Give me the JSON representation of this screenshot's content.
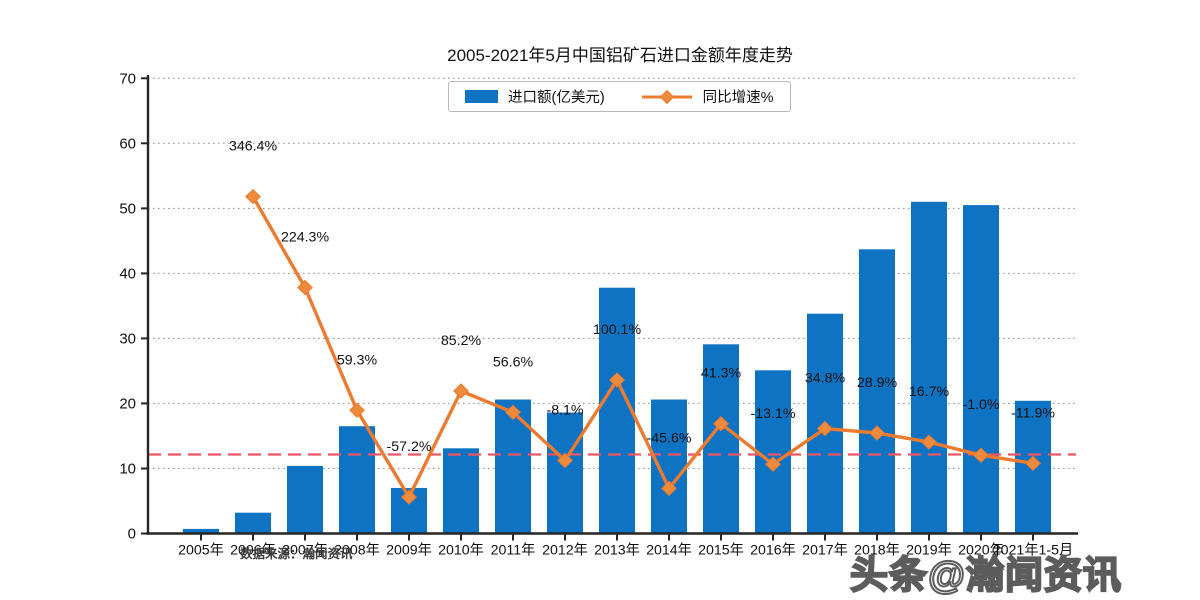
{
  "title": "2005-2021年5月中国铝矿石进口金额年度走势",
  "legend": {
    "bar_label": "进口额(亿美元)",
    "line_label": "同比增速%"
  },
  "source_note": "数据来源：瀚闻资讯",
  "watermark": "头条@瀚闻资讯",
  "colors": {
    "bar": "#0f73c4",
    "line": "#ec7b2f",
    "marker_fill": "#ee8a3c",
    "zero_growth_line": "#ed5565",
    "grid": "#9a9a9a",
    "axis": "#262626",
    "text": "#111111"
  },
  "chart_data": {
    "type": "combo-bar-line",
    "title": "2005-2021年5月中国铝矿石进口金额年度走势",
    "categories": [
      "2005年",
      "2006年",
      "2007年",
      "2008年",
      "2009年",
      "2010年",
      "2011年",
      "2012年",
      "2013年",
      "2014年",
      "2015年",
      "2016年",
      "2017年",
      "2018年",
      "2019年",
      "2020年",
      "2021年1-5月"
    ],
    "series": [
      {
        "name": "进口额(亿美元)",
        "type": "bar",
        "values": [
          0.7,
          3.2,
          10.4,
          16.5,
          7.0,
          13.1,
          20.6,
          18.6,
          37.8,
          20.6,
          29.1,
          25.1,
          33.8,
          43.7,
          51.0,
          50.5,
          20.4
        ]
      },
      {
        "name": "同比增速%",
        "type": "line",
        "values": [
          null,
          346.4,
          224.3,
          59.3,
          -57.2,
          85.2,
          56.6,
          -8.1,
          100.1,
          -45.6,
          41.3,
          -13.1,
          34.8,
          28.9,
          16.7,
          -1.0,
          -11.9
        ],
        "labels": [
          "",
          "346.4%",
          "224.3%",
          "59.3%",
          "-57.2%",
          "85.2%",
          "56.6%",
          "-8.1%",
          "100.1%",
          "-45.6%",
          "41.3%",
          "-13.1%",
          "34.8%",
          "28.9%",
          "16.7%",
          "-1.0%",
          "-11.9%"
        ]
      }
    ],
    "xlabel": "",
    "ylabel": "",
    "ylim": [
      0,
      70
    ],
    "yticks": [
      0,
      10,
      20,
      30,
      40,
      50,
      60,
      70
    ],
    "grid": true,
    "grid_style": "dotted",
    "legend_position": "top",
    "reference_line": {
      "meaning": "0% growth on hidden secondary axis",
      "style": "dashed"
    }
  }
}
